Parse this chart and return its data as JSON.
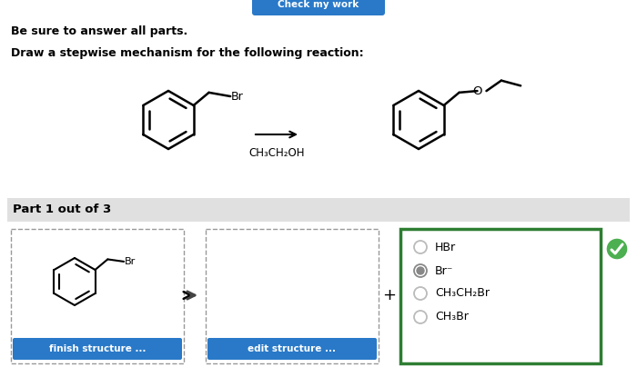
{
  "bg_color": "#ffffff",
  "button_color": "#2979c8",
  "button_text": "Check my work",
  "instruction1": "Be sure to answer all parts.",
  "instruction2": "Draw a stepwise mechanism for the following reaction:",
  "reagent_label": "CH₃CH₂OH",
  "part_label": "Part 1 out of 3",
  "part_bg": "#e0e0e0",
  "answer_options": [
    "HBr",
    "Br⁻",
    "CH₃CH₂Br",
    "CH₃Br"
  ],
  "selected_option": 1,
  "btn1_text": "finish structure ...",
  "btn2_text": "edit structure ...",
  "answer_box_color": "#2e7d32",
  "checkmark_color": "#4caf50",
  "dashed_box_color": "#999999",
  "plus_sign": "+",
  "arrow_color": "#000000"
}
